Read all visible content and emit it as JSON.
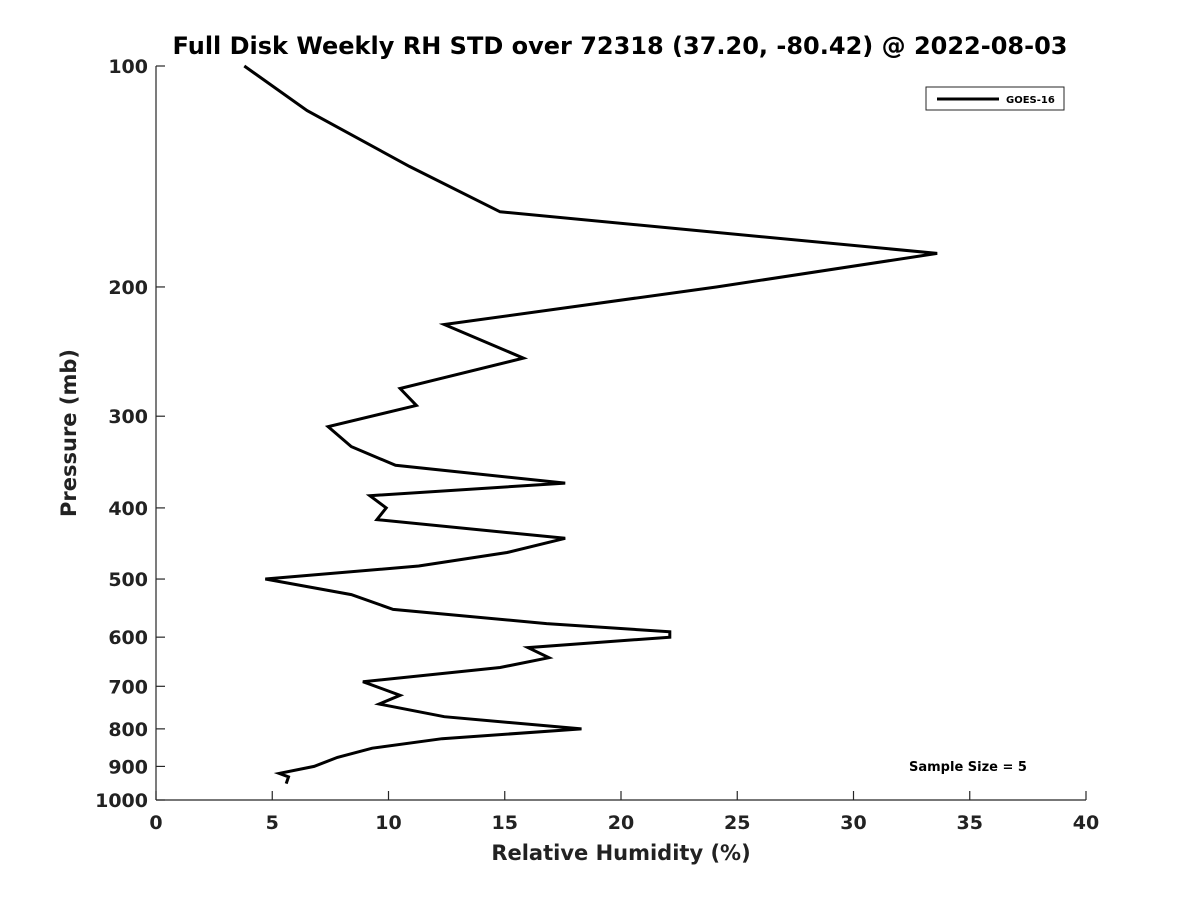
{
  "chart_data": {
    "type": "line",
    "title": "Full Disk Weekly RH STD over 72318 (37.20, -80.42) @ 2022-08-03",
    "xlabel": "Relative Humidity (%)",
    "ylabel": "Pressure (mb)",
    "xlim": [
      0,
      40
    ],
    "ylim": [
      100,
      1000
    ],
    "yscale": "log",
    "y_reversed": true,
    "grid": false,
    "x_ticks": [
      0,
      5,
      10,
      15,
      20,
      25,
      30,
      35,
      40
    ],
    "y_ticks": [
      100,
      200,
      300,
      400,
      500,
      600,
      700,
      800,
      900,
      1000
    ],
    "legend": {
      "placement": "top-right",
      "entries": [
        "GOES-16"
      ]
    },
    "annotation": "Sample Size = 5",
    "series": [
      {
        "name": "GOES-16",
        "color": "#000000",
        "x": [
          3.8,
          6.5,
          10.9,
          14.8,
          33.6,
          24.1,
          12.4,
          15.8,
          10.5,
          11.2,
          7.4,
          8.4,
          10.3,
          17.6,
          9.2,
          9.9,
          9.5,
          17.6,
          15.1,
          11.3,
          4.7,
          8.4,
          10.2,
          16.8,
          22.1,
          22.1,
          16.0,
          16.9,
          14.8,
          8.9,
          10.5,
          9.6,
          12.4,
          18.3,
          12.3,
          9.3,
          7.8,
          6.8,
          5.3,
          5.7,
          5.6
        ],
        "y": [
          100,
          115,
          137,
          158,
          180,
          200,
          225,
          250,
          275,
          290,
          310,
          330,
          350,
          370,
          385,
          400,
          415,
          440,
          460,
          480,
          500,
          525,
          550,
          575,
          590,
          600,
          620,
          640,
          660,
          690,
          720,
          740,
          770,
          800,
          825,
          850,
          875,
          900,
          920,
          930,
          950
        ]
      }
    ]
  }
}
